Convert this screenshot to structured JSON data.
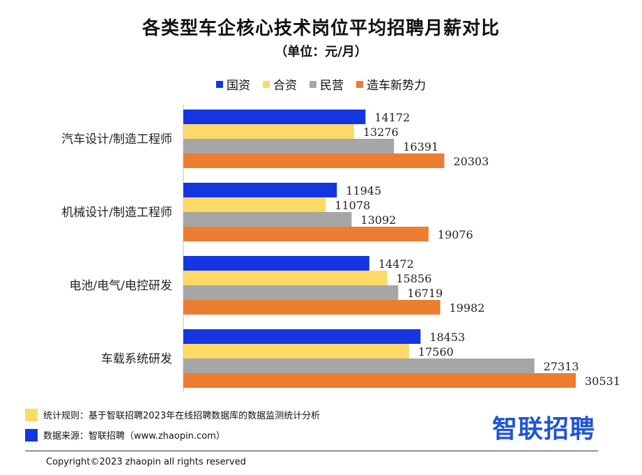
{
  "chart_data": {
    "type": "bar",
    "orientation": "horizontal",
    "title": "各类型车企核心技术岗位平均招聘月薪对比",
    "subtitle": "（单位：元/月）",
    "categories": [
      "汽车设计/制造工程师",
      "机械设计/制造工程师",
      "电池/电气/电控研发",
      "车载系统研发"
    ],
    "series": [
      {
        "name": "国资",
        "color": "#1436e0",
        "values": [
          14172,
          11945,
          14472,
          18453
        ]
      },
      {
        "name": "合资",
        "color": "#ffd966",
        "values": [
          13276,
          11078,
          15856,
          17560
        ]
      },
      {
        "name": "民营",
        "color": "#a6a6a6",
        "values": [
          16391,
          13092,
          16719,
          27313
        ]
      },
      {
        "name": "造车新势力",
        "color": "#ed7d31",
        "values": [
          20303,
          19076,
          19982,
          30531
        ]
      }
    ],
    "xlim": [
      0,
      32500
    ],
    "legend": "top",
    "grid": false
  },
  "footer": {
    "notes": [
      {
        "color": "#ffd966",
        "text": "统计规则：基于智联招聘2023年在线招聘数据库的数据监测统计分析"
      },
      {
        "color": "#1436e0",
        "text": "数据来源：智联招聘（www.zhaopin.com）"
      }
    ],
    "brand": "智联招聘",
    "copyright": "Copyright©2023 zhaopin all rights reserved"
  }
}
